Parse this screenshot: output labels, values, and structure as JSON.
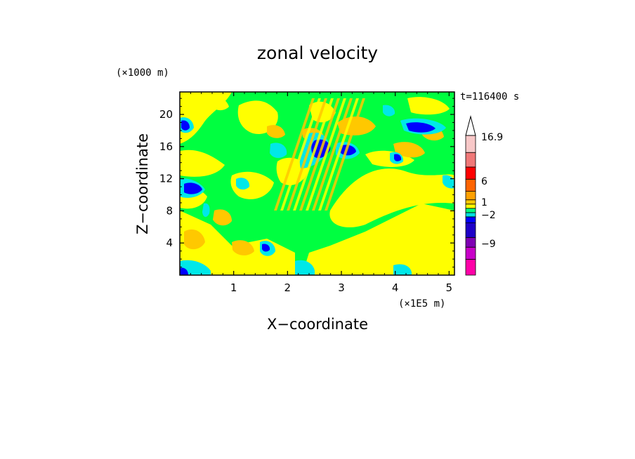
{
  "chart_data": {
    "type": "heatmap",
    "title": "zonal velocity",
    "xlabel": "X−coordinate",
    "ylabel": "Z−coordinate",
    "x_scale_note": "(×1E5 m)",
    "y_scale_note": "(×1000 m)",
    "time_label": "t=116400 s",
    "xlim": [
      0,
      5.1
    ],
    "ylim": [
      0,
      22.8
    ],
    "x_ticks": [
      "1",
      "2",
      "3",
      "4",
      "5"
    ],
    "y_ticks": [
      "4",
      "8",
      "12",
      "16",
      "20"
    ],
    "colorbar": {
      "labels": [
        "16.9",
        "6",
        "1",
        "−2",
        "−9"
      ],
      "levels": [
        {
          "color": "#ff00a8",
          "band": "min"
        },
        {
          "color": "#c800c8",
          "band": "−9"
        },
        {
          "color": "#7f00b4",
          "band": ""
        },
        {
          "color": "#1e00c8",
          "band": ""
        },
        {
          "color": "#0000ff",
          "band": ""
        },
        {
          "color": "#00e0e0",
          "band": "−2"
        },
        {
          "color": "#00ff80",
          "band": ""
        },
        {
          "color": "#ffff00",
          "band": "1"
        },
        {
          "color": "#ffc800",
          "band": ""
        },
        {
          "color": "#ffa000",
          "band": ""
        },
        {
          "color": "#ff6400",
          "band": "6"
        },
        {
          "color": "#ff0000",
          "band": ""
        },
        {
          "color": "#f07878",
          "band": ""
        },
        {
          "color": "#f8c8c8",
          "band": "16.9"
        }
      ]
    },
    "palette": {
      "green": "#00ff40",
      "yellow": "#ffff00",
      "orange": "#ffc800",
      "cyan": "#00e8e8",
      "blue": "#0000ff",
      "darkblue": "#1e00c8"
    }
  }
}
